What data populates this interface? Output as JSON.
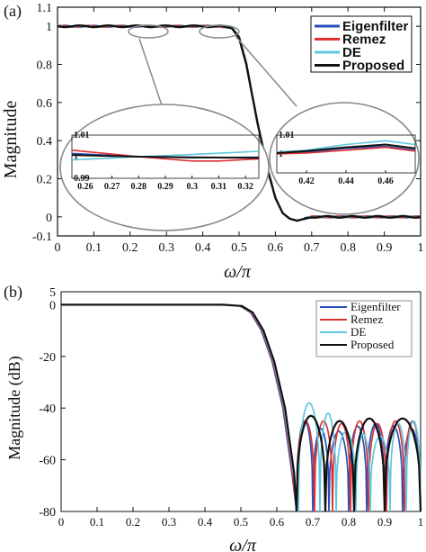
{
  "chart_data": [
    {
      "panel": "(a)",
      "type": "line",
      "xlabel": "ω/π",
      "ylabel": "Magnitude",
      "xlim": [
        0,
        1
      ],
      "ylim": [
        -0.1,
        1.1
      ],
      "x_ticks": [
        "0",
        "0.1",
        "0.2",
        "0.3",
        "0.4",
        "0.5",
        "0.6",
        "0.7",
        "0.8",
        "0.9",
        "1"
      ],
      "y_ticks": [
        "-0.1",
        "0",
        "0.2",
        "0.4",
        "0.6",
        "0.8",
        "1",
        "1.1"
      ],
      "legend_position": "top-right",
      "series": [
        {
          "name": "Eigenfilter",
          "color": "#2a4fb8",
          "x": [
            0,
            0.45,
            0.48,
            0.5,
            0.52,
            0.55,
            0.58,
            0.6,
            0.62,
            0.64,
            0.66,
            0.7,
            0.8,
            0.9,
            1.0
          ],
          "y": [
            1.0,
            1.0,
            0.99,
            0.94,
            0.8,
            0.5,
            0.24,
            0.1,
            0.02,
            -0.01,
            -0.02,
            0.0,
            0.0,
            0.0,
            0.0
          ]
        },
        {
          "name": "Remez",
          "color": "#e03030",
          "x": [
            0,
            0.45,
            0.48,
            0.5,
            0.52,
            0.55,
            0.58,
            0.6,
            0.62,
            0.64,
            0.66,
            0.7,
            0.8,
            0.9,
            1.0
          ],
          "y": [
            1.0,
            1.0,
            0.99,
            0.95,
            0.81,
            0.5,
            0.23,
            0.1,
            0.02,
            -0.01,
            -0.02,
            0.0,
            0.0,
            0.0,
            0.0
          ]
        },
        {
          "name": "DE",
          "color": "#5ec8e0",
          "x": [
            0,
            0.45,
            0.48,
            0.5,
            0.52,
            0.55,
            0.58,
            0.6,
            0.62,
            0.64,
            0.66,
            0.7,
            0.8,
            0.9,
            1.0
          ],
          "y": [
            1.0,
            1.0,
            1.0,
            0.95,
            0.81,
            0.51,
            0.24,
            0.1,
            0.02,
            -0.01,
            -0.02,
            0.0,
            0.0,
            0.0,
            0.0
          ]
        },
        {
          "name": "Proposed",
          "color": "#111111",
          "x": [
            0,
            0.45,
            0.48,
            0.5,
            0.52,
            0.55,
            0.58,
            0.6,
            0.62,
            0.64,
            0.66,
            0.7,
            0.8,
            0.9,
            1.0
          ],
          "y": [
            1.0,
            1.0,
            0.99,
            0.94,
            0.8,
            0.5,
            0.24,
            0.1,
            0.02,
            -0.01,
            -0.02,
            0.0,
            0.0,
            0.0,
            0.0
          ]
        }
      ],
      "insets": [
        {
          "name": "passband-left-zoom",
          "xlim": [
            0.255,
            0.325
          ],
          "ylim": [
            0.99,
            1.01
          ],
          "x_ticks": [
            "0.26",
            "0.27",
            "0.28",
            "0.29",
            "0.3",
            "0.31",
            "0.32"
          ],
          "y_ticks": [
            "1.01",
            "1",
            "0.99"
          ],
          "series": [
            {
              "name": "Eigenfilter",
              "x": [
                0.255,
                0.28,
                0.3,
                0.325
              ],
              "y": [
                1.0015,
                1.0,
                0.9995,
                0.9998
              ]
            },
            {
              "name": "Remez",
              "x": [
                0.255,
                0.28,
                0.3,
                0.31,
                0.325
              ],
              "y": [
                1.003,
                1.0,
                0.998,
                0.998,
                0.999
              ]
            },
            {
              "name": "DE",
              "x": [
                0.255,
                0.28,
                0.3,
                0.325
              ],
              "y": [
                0.9985,
                1.0,
                1.001,
                1.0025
              ]
            },
            {
              "name": "Proposed",
              "x": [
                0.255,
                0.28,
                0.3,
                0.325
              ],
              "y": [
                1.0008,
                1.0,
                0.9997,
                0.9995
              ]
            }
          ]
        },
        {
          "name": "passband-right-zoom",
          "xlim": [
            0.405,
            0.475
          ],
          "ylim": [
            0.99,
            1.01
          ],
          "x_ticks": [
            "0.42",
            "0.44",
            "0.46"
          ],
          "y_ticks": [
            "1.01",
            "1"
          ],
          "series": [
            {
              "name": "Eigenfilter",
              "x": [
                0.405,
                0.42,
                0.44,
                0.46,
                0.475
              ],
              "y": [
                1.0005,
                1.001,
                1.003,
                1.004,
                1.002
              ]
            },
            {
              "name": "Remez",
              "x": [
                0.405,
                0.42,
                0.44,
                0.46,
                0.475
              ],
              "y": [
                1.0,
                1.0005,
                1.002,
                1.0035,
                1.0015
              ]
            },
            {
              "name": "DE",
              "x": [
                0.405,
                0.42,
                0.44,
                0.46,
                0.475
              ],
              "y": [
                1.001,
                1.002,
                1.005,
                1.007,
                1.005
              ]
            },
            {
              "name": "Proposed",
              "x": [
                0.405,
                0.42,
                0.44,
                0.46,
                0.475
              ],
              "y": [
                1.0005,
                1.0015,
                1.0035,
                1.005,
                1.003
              ]
            }
          ]
        }
      ]
    },
    {
      "panel": "(b)",
      "type": "line",
      "xlabel": "ω/π",
      "ylabel": "Magnitude (dB)",
      "xlim": [
        0,
        1
      ],
      "ylim": [
        -80,
        5
      ],
      "x_ticks": [
        "0",
        "0.1",
        "0.2",
        "0.3",
        "0.4",
        "0.5",
        "0.6",
        "0.7",
        "0.8",
        "0.9",
        "1"
      ],
      "y_ticks": [
        "5",
        "0",
        "-20",
        "-40",
        "-60",
        "-80"
      ],
      "legend_position": "top-right",
      "passband": {
        "x": [
          0,
          0.45,
          0.5,
          0.53,
          0.56,
          0.59,
          0.62,
          0.645
        ],
        "y": [
          0,
          0,
          -0.5,
          -3,
          -10,
          -22,
          -40,
          -65
        ]
      },
      "series": [
        {
          "name": "Eigenfilter",
          "color": "#2a4fb8",
          "stopband_nulls": [
            0.655,
            0.7,
            0.745,
            0.8,
            0.85,
            0.9,
            0.95,
            1.0
          ],
          "stopband_peaks": [
            -45,
            -48,
            -49,
            -47,
            -46,
            -47,
            -48
          ]
        },
        {
          "name": "Remez",
          "color": "#e03030",
          "stopband_nulls": [
            0.655,
            0.705,
            0.755,
            0.805,
            0.855,
            0.905,
            0.955,
            1.0
          ],
          "stopband_peaks": [
            -45,
            -45,
            -46,
            -45,
            -46,
            -45,
            -45
          ]
        },
        {
          "name": "DE",
          "color": "#5ec8e0",
          "stopband_nulls": [
            0.66,
            0.72,
            0.765,
            0.82,
            0.86,
            0.915,
            0.96,
            1.0
          ],
          "stopband_peaks": [
            -38,
            -42,
            -49,
            -50,
            -51,
            -46,
            -45
          ]
        },
        {
          "name": "Proposed",
          "color": "#111111",
          "stopband_nulls": [
            0.655,
            0.735,
            0.815,
            0.9,
            1.0
          ],
          "stopband_peaks": [
            -43,
            -45,
            -44,
            -44
          ]
        }
      ]
    }
  ]
}
